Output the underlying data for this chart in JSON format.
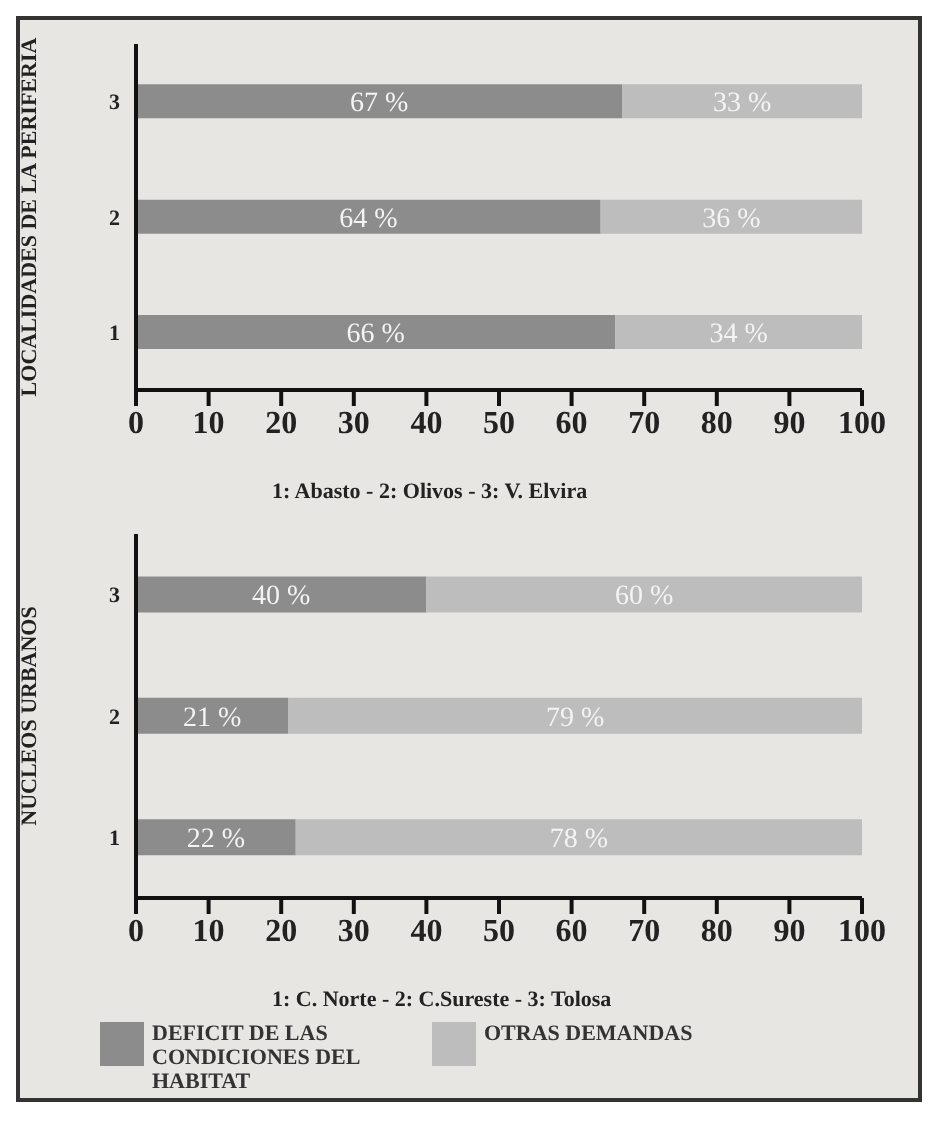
{
  "chart_data": [
    {
      "type": "bar",
      "orientation": "horizontal",
      "stacked": true,
      "ylabel": "LOCALIDADES DE LA PERIFERIA",
      "categories": [
        "3",
        "2",
        "1"
      ],
      "xlim": [
        0,
        100
      ],
      "xticks": [
        0,
        10,
        20,
        30,
        40,
        50,
        60,
        70,
        80,
        90,
        100
      ],
      "grid": false,
      "legend": false,
      "annotations": [
        "1: Abasto - 2: Olivos - 3: V. Elvira"
      ],
      "series": [
        {
          "color": "#8c8c8c",
          "values": [
            67,
            64,
            66
          ],
          "value_labels": [
            "67 %",
            "64 %",
            "66 %"
          ]
        },
        {
          "color": "#bdbdbd",
          "values": [
            33,
            36,
            34
          ],
          "value_labels": [
            "33 %",
            "36 %",
            "34 %"
          ]
        }
      ]
    },
    {
      "type": "bar",
      "orientation": "horizontal",
      "stacked": true,
      "ylabel": "NUCLEOS URBANOS",
      "categories": [
        "3",
        "2",
        "1"
      ],
      "xlim": [
        0,
        100
      ],
      "xticks": [
        0,
        10,
        20,
        30,
        40,
        50,
        60,
        70,
        80,
        90,
        100
      ],
      "grid": false,
      "legend": "bottom",
      "annotations": [
        "1: C. Norte - 2: C.Sureste - 3: Tolosa"
      ],
      "series": [
        {
          "name": "DEFICIT DE LAS CONDICIONES DEL HABITAT",
          "color": "#8c8c8c",
          "values": [
            40,
            21,
            22
          ],
          "value_labels": [
            "40 %",
            "21 %",
            "22 %"
          ]
        },
        {
          "name": "OTRAS DEMANDAS",
          "color": "#bdbdbd",
          "values": [
            60,
            79,
            78
          ],
          "value_labels": [
            "60 %",
            "79 %",
            "78 %"
          ]
        }
      ]
    }
  ]
}
